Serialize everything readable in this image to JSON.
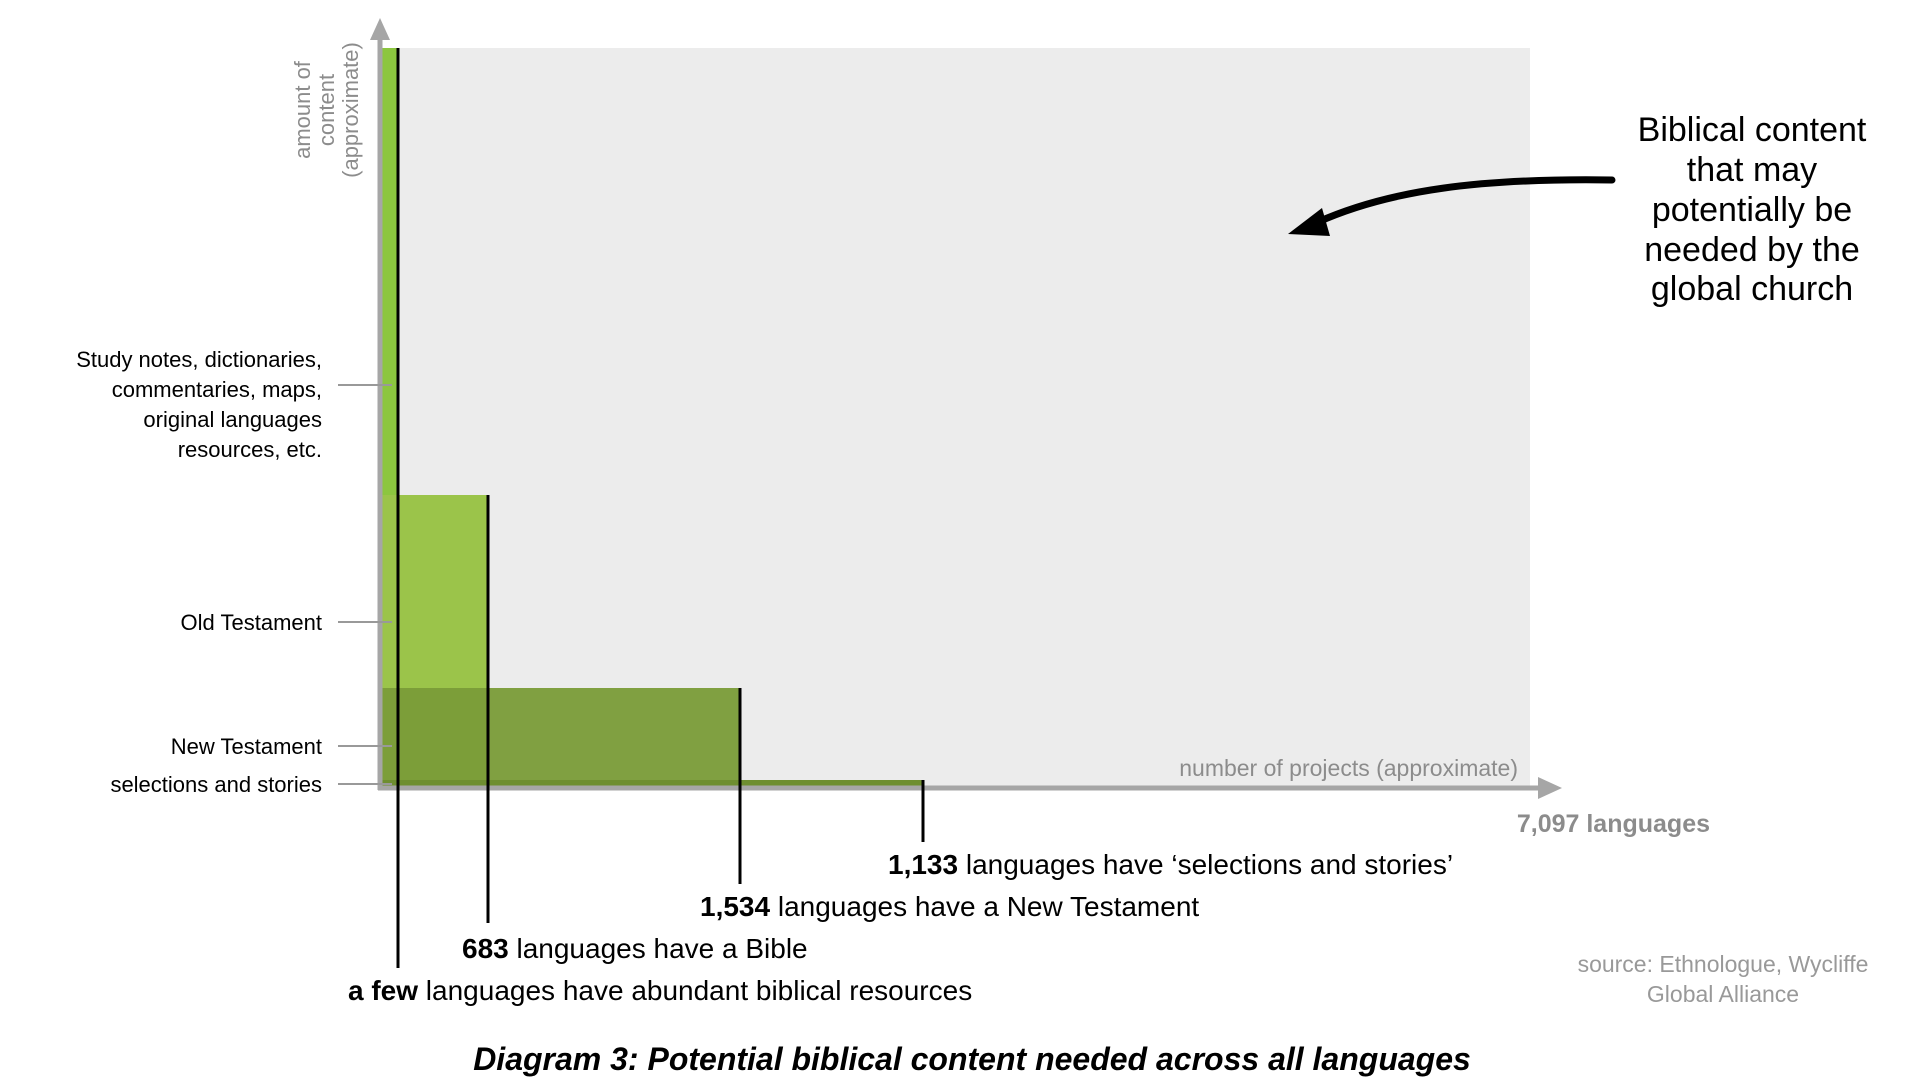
{
  "diagram": {
    "y_axis_label": [
      "amount of",
      "content",
      "(approximate)"
    ],
    "x_axis_label": "number of projects (approximate)",
    "x_axis_total": "7,097 languages",
    "content_levels": [
      {
        "name": "study-notes",
        "lines": [
          "Study notes, dictionaries,",
          "commentaries, maps,",
          "original languages",
          "resources, etc."
        ]
      },
      {
        "name": "old-testament",
        "lines": [
          "Old Testament"
        ]
      },
      {
        "name": "new-testament",
        "lines": [
          "New Testament"
        ]
      },
      {
        "name": "selections",
        "lines": [
          "selections and stories"
        ]
      }
    ],
    "callouts": [
      {
        "bold": "1,133",
        "text": " languages have ‘selections and stories’"
      },
      {
        "bold": "1,534",
        "text": " languages have a New Testament"
      },
      {
        "bold": "683",
        "text": " languages have a Bible"
      },
      {
        "bold": "a few",
        "text": " languages have abundant biblical resources"
      }
    ],
    "annotation": [
      "Biblical content",
      "that may",
      "potentially be",
      "needed by the",
      "global church"
    ],
    "source": [
      "source: Ethnologue, Wycliffe",
      "Global Alliance"
    ],
    "caption": "Diagram 3: Potential biblical content needed across all languages",
    "colors": {
      "background_area": "#ececec",
      "axis": "#a6a6a6",
      "axis_text": "#8c8c8c",
      "abundant": "#8cc63f",
      "bible": "#9bc44a",
      "new_testament": "#7a9c38",
      "selections": "#6e8e30",
      "text": "#000000",
      "source_text": "#999999"
    }
  }
}
